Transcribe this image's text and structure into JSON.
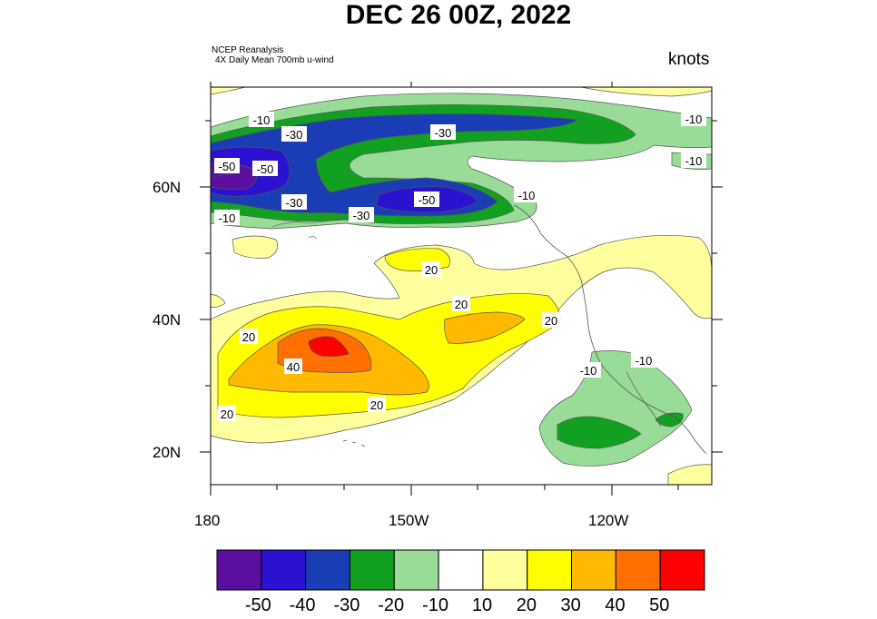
{
  "title": "DEC 26 00Z, 2022",
  "source_line1": "NCEP Reanalysis",
  "source_line2": "4X Daily Mean 700mb u-wind",
  "units": "knots",
  "lat_ticks": [
    "60N",
    "40N",
    "20N"
  ],
  "lon_ticks": [
    "180",
    "150W",
    "120W"
  ],
  "colorbar": {
    "colors": [
      "#5b0fa0",
      "#2a12d0",
      "#1a3cb5",
      "#12a020",
      "#98dc98",
      "#ffffff",
      "#ffff9e",
      "#ffff00",
      "#ffba00",
      "#ff7000",
      "#ff0000"
    ],
    "labels": [
      "-50",
      "-40",
      "-30",
      "-20",
      "-10",
      "10",
      "20",
      "30",
      "40",
      "50"
    ]
  },
  "contour_labels": [
    {
      "text": "-10"
    },
    {
      "text": "-30"
    },
    {
      "text": "-30"
    },
    {
      "text": "-10"
    },
    {
      "text": "-10"
    },
    {
      "text": "-50"
    },
    {
      "text": "-50"
    },
    {
      "text": "-30"
    },
    {
      "text": "-50"
    },
    {
      "text": "-10"
    },
    {
      "text": "-30"
    },
    {
      "text": "-10"
    },
    {
      "text": "20"
    },
    {
      "text": "20"
    },
    {
      "text": "20"
    },
    {
      "text": "20"
    },
    {
      "text": "40"
    },
    {
      "text": "20"
    },
    {
      "text": "20"
    },
    {
      "text": "-10"
    },
    {
      "text": "-10"
    }
  ],
  "colors": {
    "purple": "#5b0fa0",
    "dark_blue": "#2a12d0",
    "blue": "#1a3cb5",
    "green": "#12a020",
    "light_green": "#98dc98",
    "pale_yellow": "#ffff9e",
    "yellow": "#ffff00",
    "orange": "#ffba00",
    "dark_orange": "#ff7000",
    "red": "#ff0000"
  }
}
